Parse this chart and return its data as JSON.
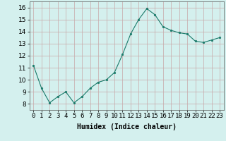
{
  "x": [
    0,
    1,
    2,
    3,
    4,
    5,
    6,
    7,
    8,
    9,
    10,
    11,
    12,
    13,
    14,
    15,
    16,
    17,
    18,
    19,
    20,
    21,
    22,
    23
  ],
  "y": [
    11.2,
    9.3,
    8.1,
    8.6,
    9.0,
    8.1,
    8.6,
    9.3,
    9.8,
    10.0,
    10.6,
    12.1,
    13.8,
    15.0,
    15.9,
    15.4,
    14.4,
    14.1,
    13.9,
    13.8,
    13.2,
    13.1,
    13.3,
    13.5
  ],
  "line_color": "#1a7a6a",
  "marker_color": "#1a7a6a",
  "bg_color": "#d4f0ee",
  "grid_color": "#c8a8a8",
  "xlabel": "Humidex (Indice chaleur)",
  "xlabel_fontsize": 7,
  "tick_fontsize": 6.5,
  "ylim": [
    7.5,
    16.5
  ],
  "xlim": [
    -0.5,
    23.5
  ],
  "yticks": [
    8,
    9,
    10,
    11,
    12,
    13,
    14,
    15,
    16
  ],
  "xtick_labels": [
    "0",
    "1",
    "2",
    "3",
    "4",
    "5",
    "6",
    "7",
    "8",
    "9",
    "10",
    "11",
    "12",
    "13",
    "14",
    "15",
    "16",
    "17",
    "18",
    "19",
    "20",
    "21",
    "22",
    "23"
  ]
}
